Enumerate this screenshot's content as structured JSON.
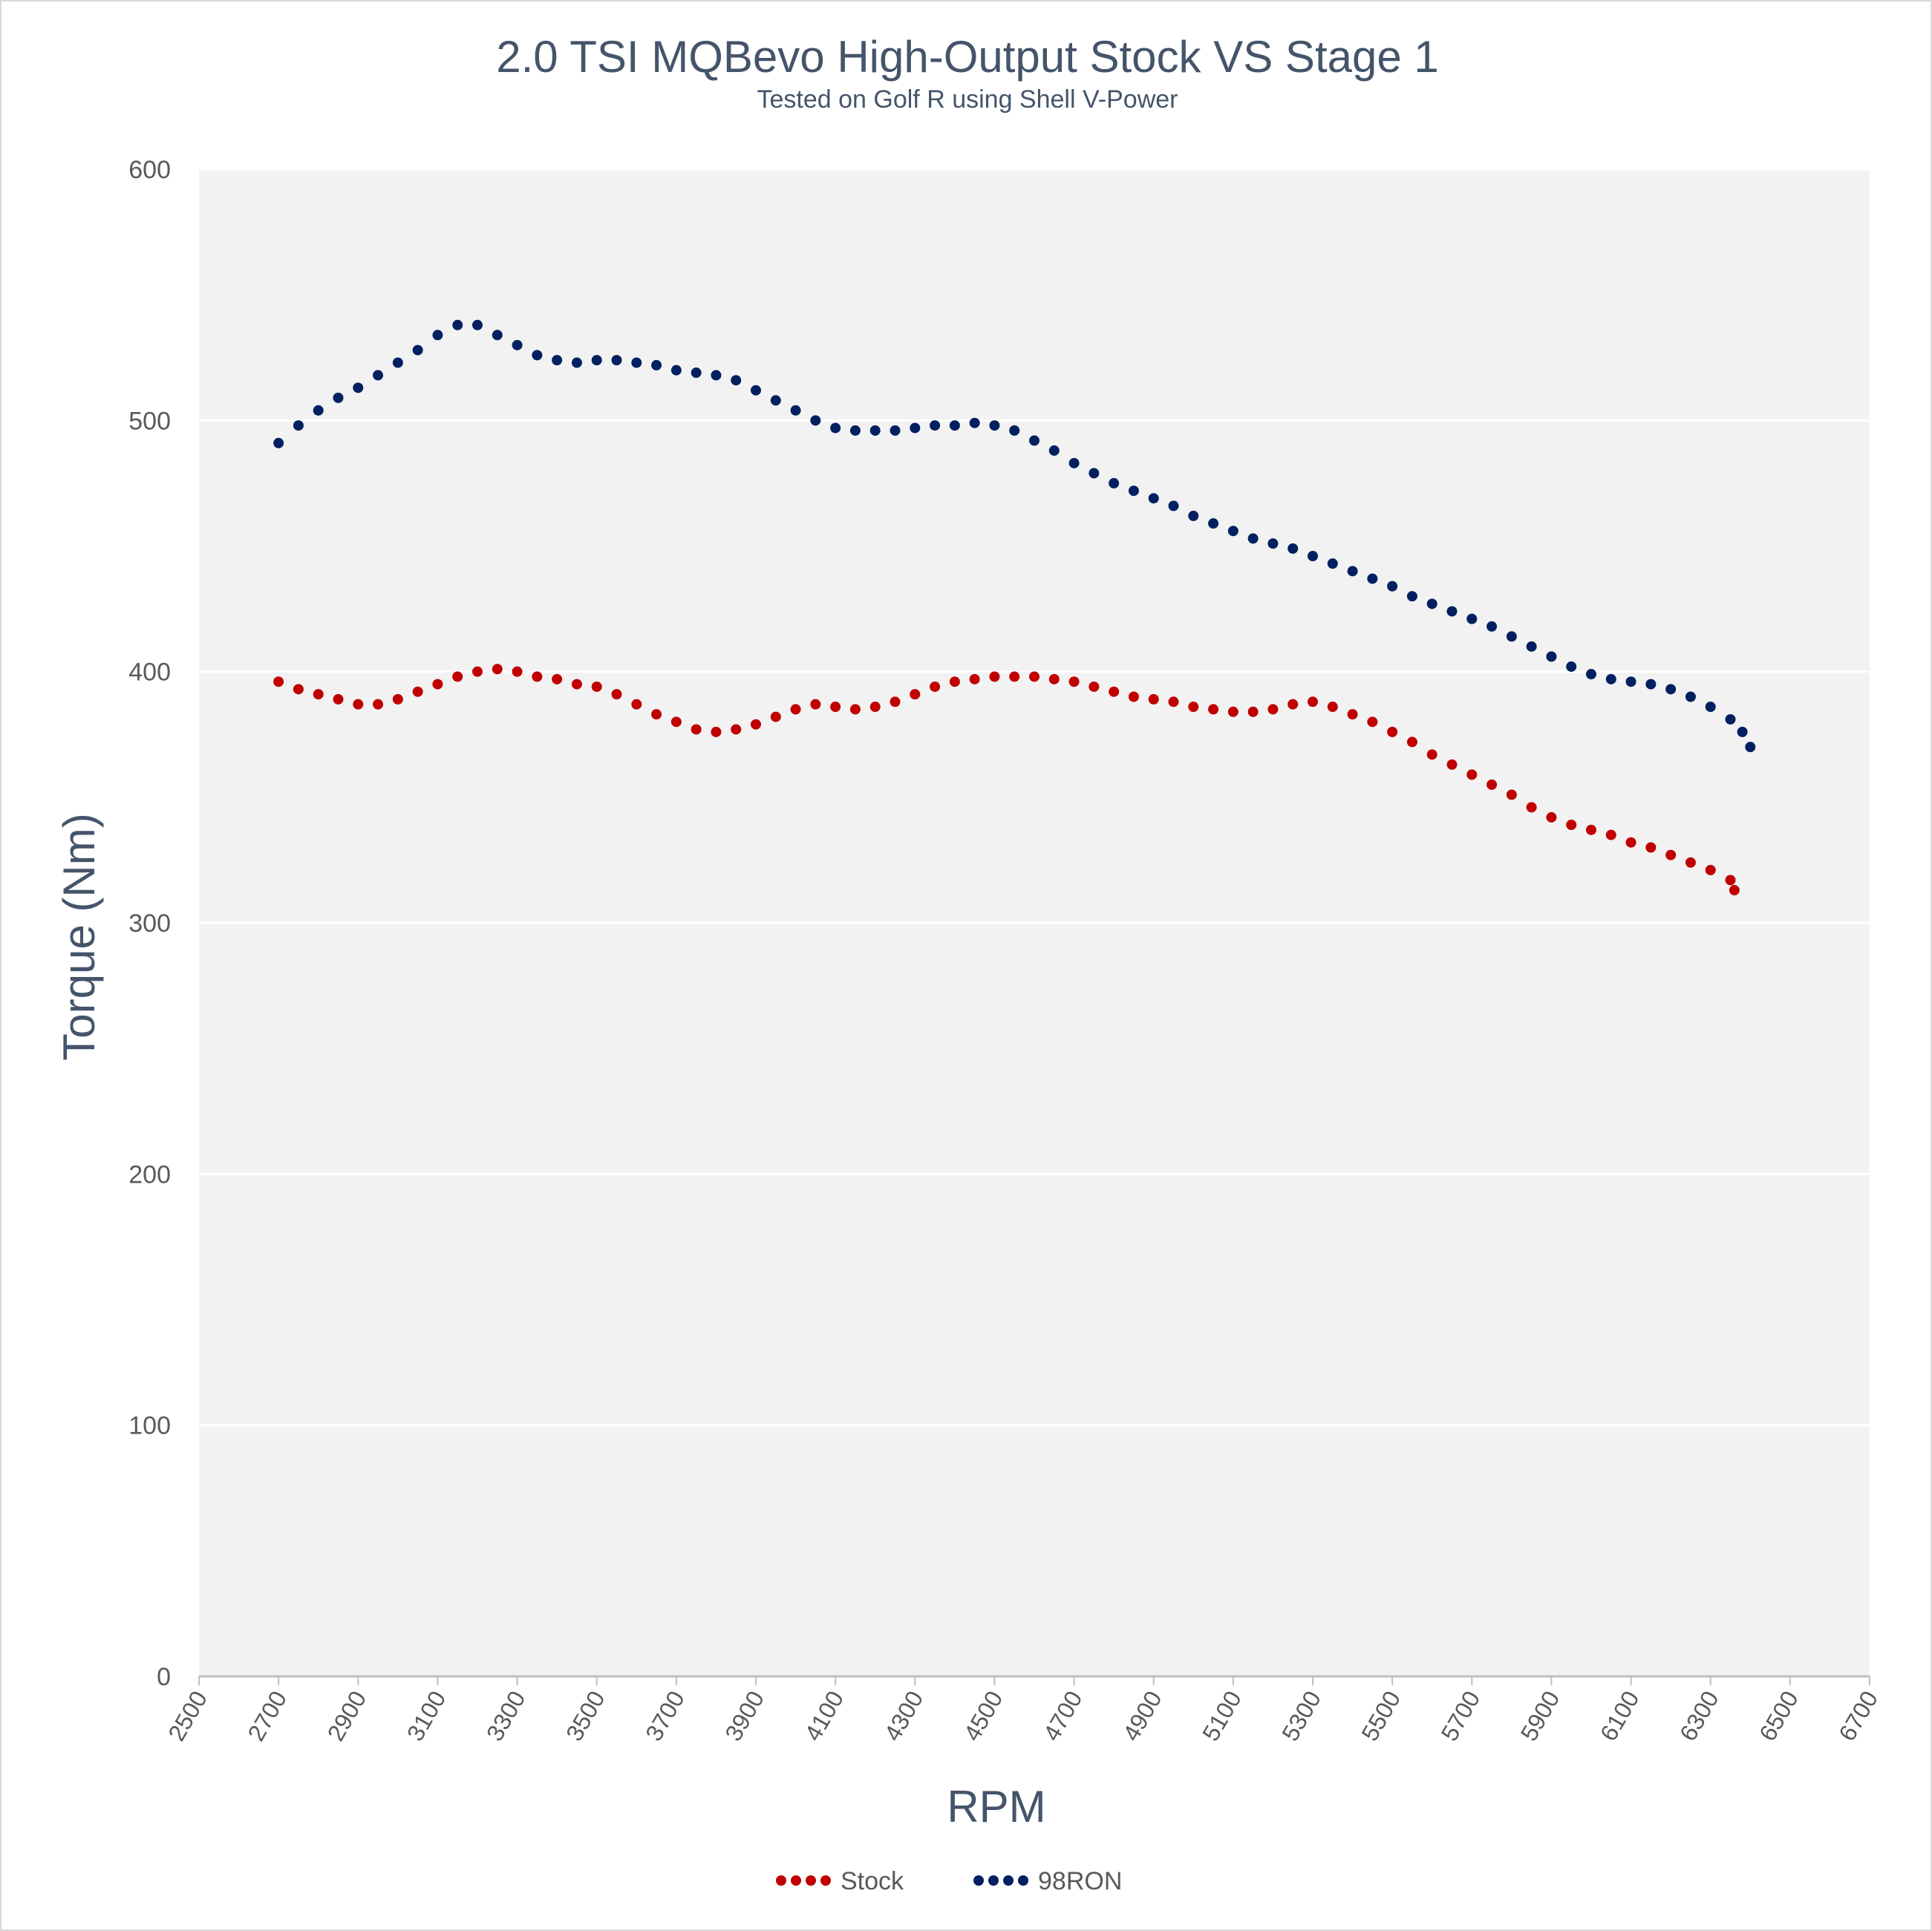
{
  "chart_data": {
    "type": "scatter",
    "title": "2.0 TSI MQBevo High-Output Stock VS Stage 1",
    "subtitle": "Tested on Golf R using Shell V-Power",
    "xlabel": "RPM",
    "ylabel": "Torque (Nm)",
    "xlim": [
      2500,
      6700
    ],
    "ylim": [
      0,
      600
    ],
    "x_ticks": [
      2500,
      2700,
      2900,
      3100,
      3300,
      3500,
      3700,
      3900,
      4100,
      4300,
      4500,
      4700,
      4900,
      5100,
      5300,
      5500,
      5700,
      5900,
      6100,
      6300,
      6500,
      6700
    ],
    "y_ticks": [
      0,
      100,
      200,
      300,
      400,
      500,
      600
    ],
    "x_tick_labels": [
      "2500",
      "2700",
      "2900",
      "3100",
      "3300",
      "3500",
      "3700",
      "3900",
      "4100",
      "4300",
      "4500",
      "4700",
      "4900",
      "5100",
      "5300",
      "5500",
      "5700",
      "5900",
      "6100",
      "6300",
      "6500",
      "6700"
    ],
    "y_tick_labels": [
      "0",
      "100",
      "200",
      "300",
      "400",
      "500",
      "600"
    ],
    "grid": "horizontal",
    "legend_position": "bottom",
    "plot_background": "#f2f2f2",
    "series": [
      {
        "name": "Stock",
        "color": "#c00000",
        "points": [
          [
            2700,
            396
          ],
          [
            2750,
            393
          ],
          [
            2800,
            391
          ],
          [
            2850,
            389
          ],
          [
            2900,
            387
          ],
          [
            2950,
            387
          ],
          [
            3000,
            389
          ],
          [
            3050,
            392
          ],
          [
            3100,
            395
          ],
          [
            3150,
            398
          ],
          [
            3200,
            400
          ],
          [
            3250,
            401
          ],
          [
            3300,
            400
          ],
          [
            3350,
            398
          ],
          [
            3400,
            397
          ],
          [
            3450,
            395
          ],
          [
            3500,
            394
          ],
          [
            3550,
            391
          ],
          [
            3600,
            387
          ],
          [
            3650,
            383
          ],
          [
            3700,
            380
          ],
          [
            3750,
            377
          ],
          [
            3800,
            376
          ],
          [
            3850,
            377
          ],
          [
            3900,
            379
          ],
          [
            3950,
            382
          ],
          [
            4000,
            385
          ],
          [
            4050,
            387
          ],
          [
            4100,
            386
          ],
          [
            4150,
            385
          ],
          [
            4200,
            386
          ],
          [
            4250,
            388
          ],
          [
            4300,
            391
          ],
          [
            4350,
            394
          ],
          [
            4400,
            396
          ],
          [
            4450,
            397
          ],
          [
            4500,
            398
          ],
          [
            4550,
            398
          ],
          [
            4600,
            398
          ],
          [
            4650,
            397
          ],
          [
            4700,
            396
          ],
          [
            4750,
            394
          ],
          [
            4800,
            392
          ],
          [
            4850,
            390
          ],
          [
            4900,
            389
          ],
          [
            4950,
            388
          ],
          [
            5000,
            386
          ],
          [
            5050,
            385
          ],
          [
            5100,
            384
          ],
          [
            5150,
            384
          ],
          [
            5200,
            385
          ],
          [
            5250,
            387
          ],
          [
            5300,
            388
          ],
          [
            5350,
            386
          ],
          [
            5400,
            383
          ],
          [
            5450,
            380
          ],
          [
            5500,
            376
          ],
          [
            5550,
            372
          ],
          [
            5600,
            367
          ],
          [
            5650,
            363
          ],
          [
            5700,
            359
          ],
          [
            5750,
            355
          ],
          [
            5800,
            351
          ],
          [
            5850,
            346
          ],
          [
            5900,
            342
          ],
          [
            5950,
            339
          ],
          [
            6000,
            337
          ],
          [
            6050,
            335
          ],
          [
            6100,
            332
          ],
          [
            6150,
            330
          ],
          [
            6200,
            327
          ],
          [
            6250,
            324
          ],
          [
            6300,
            321
          ],
          [
            6350,
            317
          ],
          [
            6360,
            313
          ]
        ]
      },
      {
        "name": "98RON",
        "color": "#002060",
        "points": [
          [
            2700,
            491
          ],
          [
            2750,
            498
          ],
          [
            2800,
            504
          ],
          [
            2850,
            509
          ],
          [
            2900,
            513
          ],
          [
            2950,
            518
          ],
          [
            3000,
            523
          ],
          [
            3050,
            528
          ],
          [
            3100,
            534
          ],
          [
            3150,
            538
          ],
          [
            3200,
            538
          ],
          [
            3250,
            534
          ],
          [
            3300,
            530
          ],
          [
            3350,
            526
          ],
          [
            3400,
            524
          ],
          [
            3450,
            523
          ],
          [
            3500,
            524
          ],
          [
            3550,
            524
          ],
          [
            3600,
            523
          ],
          [
            3650,
            522
          ],
          [
            3700,
            520
          ],
          [
            3750,
            519
          ],
          [
            3800,
            518
          ],
          [
            3850,
            516
          ],
          [
            3900,
            512
          ],
          [
            3950,
            508
          ],
          [
            4000,
            504
          ],
          [
            4050,
            500
          ],
          [
            4100,
            497
          ],
          [
            4150,
            496
          ],
          [
            4200,
            496
          ],
          [
            4250,
            496
          ],
          [
            4300,
            497
          ],
          [
            4350,
            498
          ],
          [
            4400,
            498
          ],
          [
            4450,
            499
          ],
          [
            4500,
            498
          ],
          [
            4550,
            496
          ],
          [
            4600,
            492
          ],
          [
            4650,
            488
          ],
          [
            4700,
            483
          ],
          [
            4750,
            479
          ],
          [
            4800,
            475
          ],
          [
            4850,
            472
          ],
          [
            4900,
            469
          ],
          [
            4950,
            466
          ],
          [
            5000,
            462
          ],
          [
            5050,
            459
          ],
          [
            5100,
            456
          ],
          [
            5150,
            453
          ],
          [
            5200,
            451
          ],
          [
            5250,
            449
          ],
          [
            5300,
            446
          ],
          [
            5350,
            443
          ],
          [
            5400,
            440
          ],
          [
            5450,
            437
          ],
          [
            5500,
            434
          ],
          [
            5550,
            430
          ],
          [
            5600,
            427
          ],
          [
            5650,
            424
          ],
          [
            5700,
            421
          ],
          [
            5750,
            418
          ],
          [
            5800,
            414
          ],
          [
            5850,
            410
          ],
          [
            5900,
            406
          ],
          [
            5950,
            402
          ],
          [
            6000,
            399
          ],
          [
            6050,
            397
          ],
          [
            6100,
            396
          ],
          [
            6150,
            395
          ],
          [
            6200,
            393
          ],
          [
            6250,
            390
          ],
          [
            6300,
            386
          ],
          [
            6350,
            381
          ],
          [
            6380,
            376
          ],
          [
            6400,
            370
          ]
        ]
      }
    ]
  }
}
